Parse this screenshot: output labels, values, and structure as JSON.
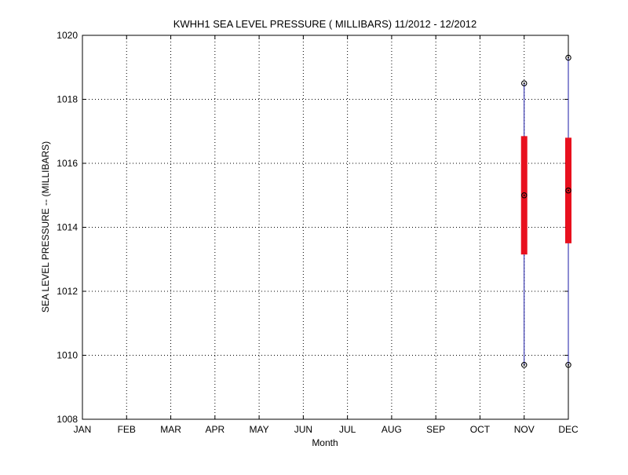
{
  "chart_data": {
    "type": "box",
    "title": "KWHH1  SEA LEVEL PRESSURE ( MILLIBARS) 11/2012 - 12/2012",
    "xlabel": "Month",
    "ylabel": "SEA LEVEL PRESSURE -- (MILLIBARS)",
    "categories": [
      "JAN",
      "FEB",
      "MAR",
      "APR",
      "MAY",
      "JUN",
      "JUL",
      "AUG",
      "SEP",
      "OCT",
      "NOV",
      "DEC"
    ],
    "ylim": [
      1008,
      1020
    ],
    "yticks": [
      1008,
      1010,
      1012,
      1014,
      1016,
      1018,
      1020
    ],
    "grid": true,
    "colors": {
      "whisker": "#1a1aa6",
      "box": "#e8101e",
      "marker": "#000000"
    },
    "boxes": [
      {
        "category": "NOV",
        "min": 1009.7,
        "q1": 1013.15,
        "median": 1015.0,
        "q3": 1016.85,
        "max": 1018.5
      },
      {
        "category": "DEC",
        "min": 1009.7,
        "q1": 1013.5,
        "median": 1015.15,
        "q3": 1016.8,
        "max": 1019.3
      }
    ]
  }
}
